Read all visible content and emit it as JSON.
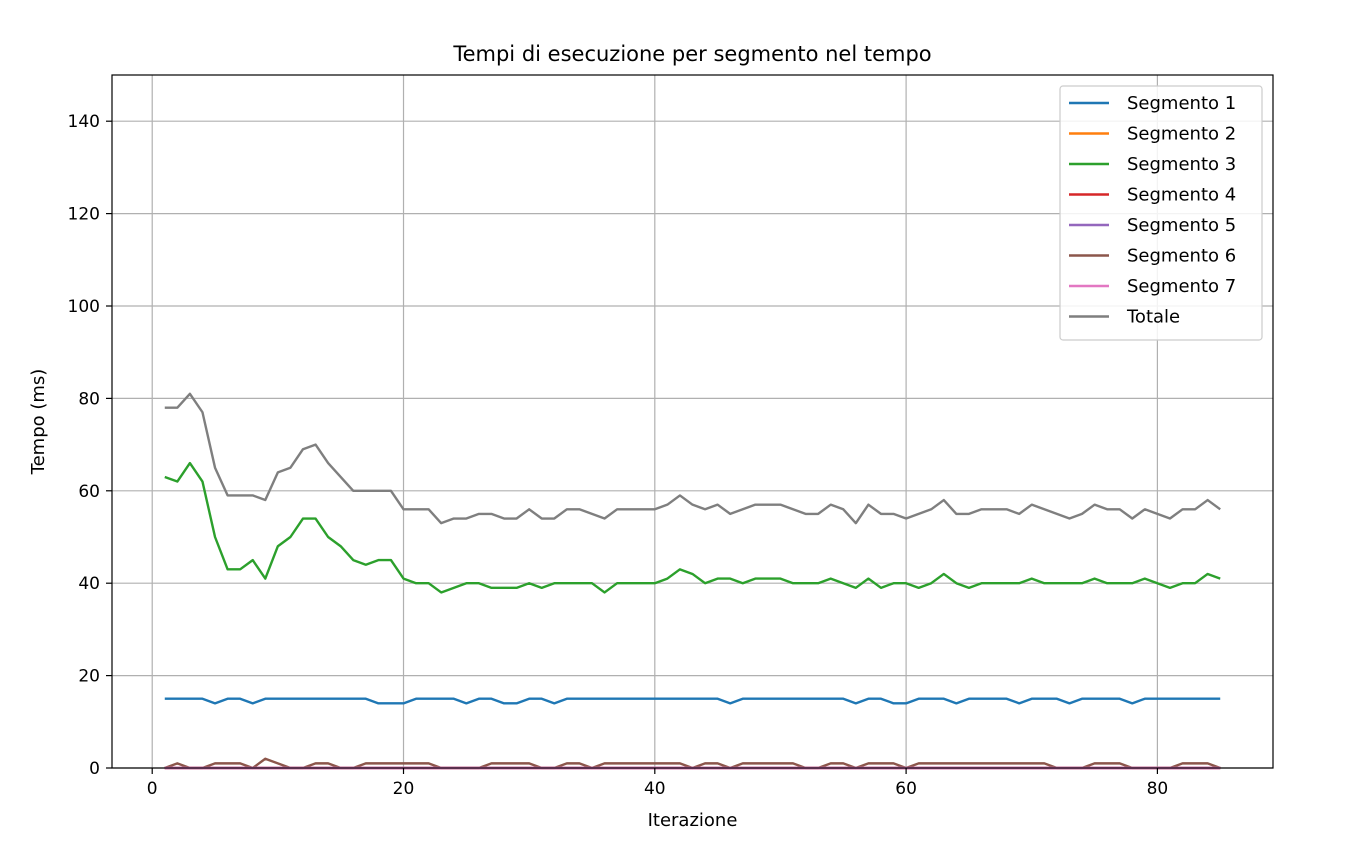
{
  "chart_data": {
    "type": "line",
    "title": "Tempi di esecuzione per segmento nel tempo",
    "xlabel": "Iterazione",
    "ylabel": "Tempo (ms)",
    "xlim": [
      -3.2,
      89.2
    ],
    "ylim": [
      0,
      150
    ],
    "xticks": [
      0,
      20,
      40,
      60,
      80
    ],
    "yticks": [
      0,
      20,
      40,
      60,
      80,
      100,
      120,
      140
    ],
    "grid": true,
    "legend_position": "top-right",
    "x": [
      1,
      2,
      3,
      4,
      5,
      6,
      7,
      8,
      9,
      10,
      11,
      12,
      13,
      14,
      15,
      16,
      17,
      18,
      19,
      20,
      21,
      22,
      23,
      24,
      25,
      26,
      27,
      28,
      29,
      30,
      31,
      32,
      33,
      34,
      35,
      36,
      37,
      38,
      39,
      40,
      41,
      42,
      43,
      44,
      45,
      46,
      47,
      48,
      49,
      50,
      51,
      52,
      53,
      54,
      55,
      56,
      57,
      58,
      59,
      60,
      61,
      62,
      63,
      64,
      65,
      66,
      67,
      68,
      69,
      70,
      71,
      72,
      73,
      74,
      75,
      76,
      77,
      78,
      79,
      80,
      81,
      82,
      83,
      84,
      85
    ],
    "series": [
      {
        "name": "Segmento 1",
        "color": "#1f77b4",
        "values": [
          15,
          15,
          15,
          15,
          14,
          15,
          15,
          14,
          15,
          15,
          15,
          15,
          15,
          15,
          15,
          15,
          15,
          14,
          14,
          14,
          15,
          15,
          15,
          15,
          14,
          15,
          15,
          14,
          14,
          15,
          15,
          14,
          15,
          15,
          15,
          15,
          15,
          15,
          15,
          15,
          15,
          15,
          15,
          15,
          15,
          14,
          15,
          15,
          15,
          15,
          15,
          15,
          15,
          15,
          15,
          14,
          15,
          15,
          14,
          14,
          15,
          15,
          15,
          14,
          15,
          15,
          15,
          15,
          14,
          15,
          15,
          15,
          14,
          15,
          15,
          15,
          15,
          14,
          15,
          15,
          15,
          15,
          15,
          15,
          15
        ]
      },
      {
        "name": "Segmento 2",
        "color": "#ff7f0e",
        "values": [
          0,
          0,
          0,
          0,
          0,
          0,
          0,
          0,
          0,
          0,
          0,
          0,
          0,
          0,
          0,
          0,
          0,
          0,
          0,
          0,
          0,
          0,
          0,
          0,
          0,
          0,
          0,
          0,
          0,
          0,
          0,
          0,
          0,
          0,
          0,
          0,
          0,
          0,
          0,
          0,
          0,
          0,
          0,
          0,
          0,
          0,
          0,
          0,
          0,
          0,
          0,
          0,
          0,
          0,
          0,
          0,
          0,
          0,
          0,
          0,
          0,
          0,
          0,
          0,
          0,
          0,
          0,
          0,
          0,
          0,
          0,
          0,
          0,
          0,
          0,
          0,
          0,
          0,
          0,
          0,
          0,
          0,
          0,
          0,
          0
        ]
      },
      {
        "name": "Segmento 3",
        "color": "#2ca02c",
        "values": [
          63,
          62,
          66,
          62,
          50,
          43,
          43,
          45,
          41,
          48,
          50,
          54,
          54,
          50,
          48,
          45,
          44,
          45,
          45,
          41,
          40,
          40,
          38,
          39,
          40,
          40,
          39,
          39,
          39,
          40,
          39,
          40,
          40,
          40,
          40,
          38,
          40,
          40,
          40,
          40,
          41,
          43,
          42,
          40,
          41,
          41,
          40,
          41,
          41,
          41,
          40,
          40,
          40,
          41,
          40,
          39,
          41,
          39,
          40,
          40,
          39,
          40,
          42,
          40,
          39,
          40,
          40,
          40,
          40,
          41,
          40,
          40,
          40,
          40,
          41,
          40,
          40,
          40,
          41,
          40,
          39,
          40,
          40,
          42,
          41
        ]
      },
      {
        "name": "Segmento 4",
        "color": "#d62728",
        "values": [
          0,
          0,
          0,
          0,
          0,
          0,
          0,
          0,
          0,
          0,
          0,
          0,
          0,
          0,
          0,
          0,
          0,
          0,
          0,
          0,
          0,
          0,
          0,
          0,
          0,
          0,
          0,
          0,
          0,
          0,
          0,
          0,
          0,
          0,
          0,
          0,
          0,
          0,
          0,
          0,
          0,
          0,
          0,
          0,
          0,
          0,
          0,
          0,
          0,
          0,
          0,
          0,
          0,
          0,
          0,
          0,
          0,
          0,
          0,
          0,
          0,
          0,
          0,
          0,
          0,
          0,
          0,
          0,
          0,
          0,
          0,
          0,
          0,
          0,
          0,
          0,
          0,
          0,
          0,
          0,
          0,
          0,
          0,
          0,
          0
        ]
      },
      {
        "name": "Segmento 5",
        "color": "#9467bd",
        "values": [
          0,
          0,
          0,
          0,
          0,
          0,
          0,
          0,
          0,
          0,
          0,
          0,
          0,
          0,
          0,
          0,
          0,
          0,
          0,
          0,
          0,
          0,
          0,
          0,
          0,
          0,
          0,
          0,
          0,
          0,
          0,
          0,
          0,
          0,
          0,
          0,
          0,
          0,
          0,
          0,
          0,
          0,
          0,
          0,
          0,
          0,
          0,
          0,
          0,
          0,
          0,
          0,
          0,
          0,
          0,
          0,
          0,
          0,
          0,
          0,
          0,
          0,
          0,
          0,
          0,
          0,
          0,
          0,
          0,
          0,
          0,
          0,
          0,
          0,
          0,
          0,
          0,
          0,
          0,
          0,
          0,
          0,
          0,
          0,
          0
        ]
      },
      {
        "name": "Segmento 6",
        "color": "#8c564b",
        "values": [
          0,
          1,
          0,
          0,
          1,
          1,
          1,
          0,
          2,
          1,
          0,
          0,
          1,
          1,
          0,
          0,
          1,
          1,
          1,
          1,
          1,
          1,
          0,
          0,
          0,
          0,
          1,
          1,
          1,
          1,
          0,
          0,
          1,
          1,
          0,
          1,
          1,
          1,
          1,
          1,
          1,
          1,
          0,
          1,
          1,
          0,
          1,
          1,
          1,
          1,
          1,
          0,
          0,
          1,
          1,
          0,
          1,
          1,
          1,
          0,
          1,
          1,
          1,
          1,
          1,
          1,
          1,
          1,
          1,
          1,
          1,
          0,
          0,
          0,
          1,
          1,
          1,
          0,
          0,
          0,
          0,
          1,
          1,
          1,
          0
        ]
      },
      {
        "name": "Segmento 7",
        "color": "#e377c2",
        "values": [
          0,
          0,
          0,
          0,
          0,
          0,
          0,
          0,
          0,
          0,
          0,
          0,
          0,
          0,
          0,
          0,
          0,
          0,
          0,
          0,
          0,
          0,
          0,
          0,
          0,
          0,
          0,
          0,
          0,
          0,
          0,
          0,
          0,
          0,
          0,
          0,
          0,
          0,
          0,
          0,
          0,
          0,
          0,
          0,
          0,
          0,
          0,
          0,
          0,
          0,
          0,
          0,
          0,
          0,
          0,
          0,
          0,
          0,
          0,
          0,
          0,
          0,
          0,
          0,
          0,
          0,
          0,
          0,
          0,
          0,
          0,
          0,
          0,
          0,
          0,
          0,
          0,
          0,
          0,
          0,
          0,
          0,
          0,
          0,
          0
        ]
      },
      {
        "name": "Totale",
        "color": "#7f7f7f",
        "values": [
          78,
          78,
          81,
          77,
          65,
          59,
          59,
          59,
          58,
          64,
          65,
          69,
          70,
          66,
          63,
          60,
          60,
          60,
          60,
          56,
          56,
          56,
          53,
          54,
          54,
          55,
          55,
          54,
          54,
          56,
          54,
          54,
          56,
          56,
          55,
          54,
          56,
          56,
          56,
          56,
          57,
          59,
          57,
          56,
          57,
          55,
          56,
          57,
          57,
          57,
          56,
          55,
          55,
          57,
          56,
          53,
          57,
          55,
          55,
          54,
          55,
          56,
          58,
          55,
          55,
          56,
          56,
          56,
          55,
          57,
          56,
          55,
          54,
          55,
          57,
          56,
          56,
          54,
          56,
          55,
          54,
          56,
          56,
          58,
          56
        ]
      }
    ]
  }
}
